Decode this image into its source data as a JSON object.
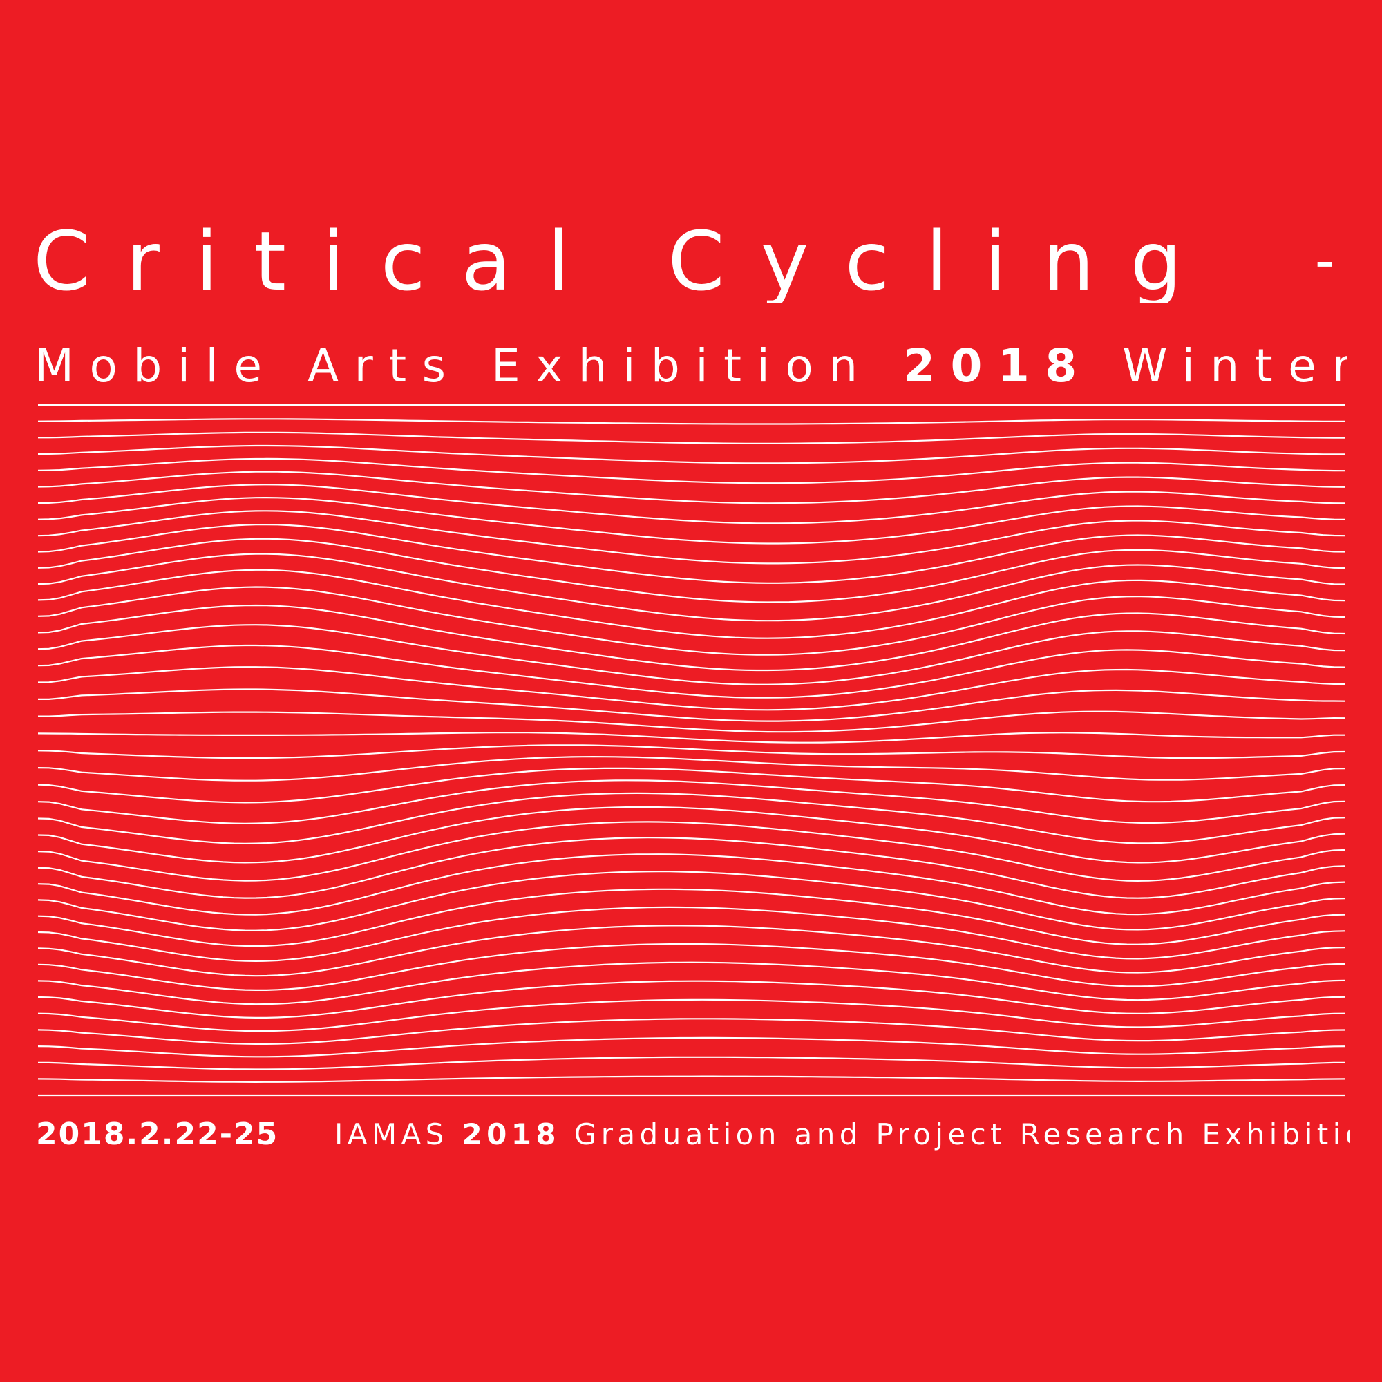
{
  "colors": {
    "background": "#ed1c24",
    "foreground": "#ffffff"
  },
  "title": {
    "main": "Critical Cycling",
    "plus": "+"
  },
  "subtitle": {
    "prefix": "Mobile Arts Exhibition",
    "year": "2018",
    "suffix": "Winter"
  },
  "footer": {
    "dates": "2018.2.22-25",
    "org": "IAMAS",
    "year": "2018",
    "description": "Graduation and Project Research Exhibition"
  }
}
